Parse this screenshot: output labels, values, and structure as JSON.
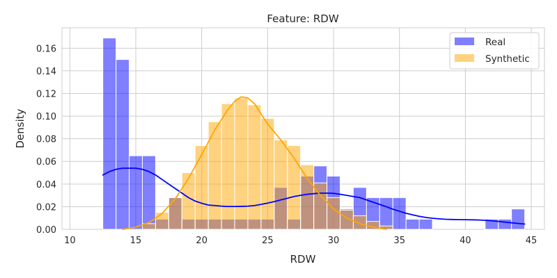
{
  "chart_data": {
    "type": "bar",
    "title": "Feature: RDW",
    "xlabel": "RDW",
    "ylabel": "Density",
    "xlim": [
      9.4,
      46
    ],
    "ylim": [
      0,
      0.178
    ],
    "xticks": [
      10,
      15,
      20,
      25,
      30,
      35,
      40,
      45
    ],
    "yticks": [
      0.0,
      0.02,
      0.04,
      0.06,
      0.08,
      0.1,
      0.12,
      0.14,
      0.16
    ],
    "ytick_labels": [
      "0.00",
      "0.02",
      "0.04",
      "0.06",
      "0.08",
      "0.10",
      "0.12",
      "0.14",
      "0.16"
    ],
    "grid": true,
    "legend_position": "top-right",
    "series": [
      {
        "name": "Real",
        "color": "#0000ff",
        "bin_width": 1,
        "bins": [
          {
            "x": 12.5,
            "y": 0.169
          },
          {
            "x": 13.5,
            "y": 0.15
          },
          {
            "x": 14.5,
            "y": 0.065
          },
          {
            "x": 15.5,
            "y": 0.065
          },
          {
            "x": 16.5,
            "y": 0.009
          },
          {
            "x": 17.5,
            "y": 0.028
          },
          {
            "x": 18.5,
            "y": 0.009
          },
          {
            "x": 19.5,
            "y": 0.009
          },
          {
            "x": 20.5,
            "y": 0.009
          },
          {
            "x": 21.5,
            "y": 0.009
          },
          {
            "x": 22.5,
            "y": 0.009
          },
          {
            "x": 23.5,
            "y": 0.009
          },
          {
            "x": 24.5,
            "y": 0.009
          },
          {
            "x": 25.5,
            "y": 0.037
          },
          {
            "x": 26.5,
            "y": 0.009
          },
          {
            "x": 27.5,
            "y": 0.047
          },
          {
            "x": 28.5,
            "y": 0.056
          },
          {
            "x": 29.5,
            "y": 0.047
          },
          {
            "x": 30.5,
            "y": 0.018
          },
          {
            "x": 31.5,
            "y": 0.037
          },
          {
            "x": 32.5,
            "y": 0.028
          },
          {
            "x": 33.5,
            "y": 0.028
          },
          {
            "x": 34.5,
            "y": 0.028
          },
          {
            "x": 35.5,
            "y": 0.009
          },
          {
            "x": 36.5,
            "y": 0.009
          },
          {
            "x": 41.5,
            "y": 0.009
          },
          {
            "x": 42.5,
            "y": 0.009
          },
          {
            "x": 43.5,
            "y": 0.018
          }
        ],
        "kde": [
          [
            12.5,
            0.048
          ],
          [
            13.0,
            0.051
          ],
          [
            13.5,
            0.053
          ],
          [
            14.0,
            0.054
          ],
          [
            14.5,
            0.054
          ],
          [
            15.0,
            0.054
          ],
          [
            15.5,
            0.053
          ],
          [
            16.0,
            0.051
          ],
          [
            16.5,
            0.048
          ],
          [
            17.0,
            0.044
          ],
          [
            17.5,
            0.04
          ],
          [
            18.0,
            0.036
          ],
          [
            18.5,
            0.032
          ],
          [
            19.0,
            0.028
          ],
          [
            19.5,
            0.025
          ],
          [
            20.0,
            0.023
          ],
          [
            20.5,
            0.0215
          ],
          [
            21.0,
            0.021
          ],
          [
            21.5,
            0.0205
          ],
          [
            22.0,
            0.0202
          ],
          [
            22.5,
            0.0202
          ],
          [
            23.0,
            0.0203
          ],
          [
            23.5,
            0.0205
          ],
          [
            24.0,
            0.021
          ],
          [
            24.5,
            0.022
          ],
          [
            25.0,
            0.0232
          ],
          [
            25.5,
            0.0245
          ],
          [
            26.0,
            0.026
          ],
          [
            26.5,
            0.0275
          ],
          [
            27.0,
            0.029
          ],
          [
            27.5,
            0.03
          ],
          [
            28.0,
            0.031
          ],
          [
            28.5,
            0.0315
          ],
          [
            29.0,
            0.032
          ],
          [
            29.5,
            0.032
          ],
          [
            30.0,
            0.0318
          ],
          [
            30.5,
            0.031
          ],
          [
            31.0,
            0.03
          ],
          [
            31.5,
            0.029
          ],
          [
            32.0,
            0.028
          ],
          [
            32.5,
            0.026
          ],
          [
            33.0,
            0.024
          ],
          [
            33.5,
            0.022
          ],
          [
            34.0,
            0.02
          ],
          [
            34.5,
            0.0178
          ],
          [
            35.0,
            0.016
          ],
          [
            35.5,
            0.0142
          ],
          [
            36.0,
            0.0128
          ],
          [
            36.5,
            0.0115
          ],
          [
            37.0,
            0.0105
          ],
          [
            37.5,
            0.0098
          ],
          [
            38.0,
            0.0093
          ],
          [
            38.5,
            0.0089
          ],
          [
            39.0,
            0.0087
          ],
          [
            39.5,
            0.0086
          ],
          [
            40.0,
            0.0085
          ],
          [
            40.5,
            0.0084
          ],
          [
            41.0,
            0.0083
          ],
          [
            41.5,
            0.008
          ],
          [
            42.0,
            0.0076
          ],
          [
            42.5,
            0.007
          ],
          [
            43.0,
            0.0064
          ],
          [
            43.5,
            0.0058
          ],
          [
            44.0,
            0.0052
          ],
          [
            44.5,
            0.0047
          ]
        ]
      },
      {
        "name": "Synthetic",
        "color": "#ffa500",
        "bin_width": 1,
        "bins": [
          {
            "x": 15.5,
            "y": 0.005
          },
          {
            "x": 16.5,
            "y": 0.015
          },
          {
            "x": 17.5,
            "y": 0.028
          },
          {
            "x": 18.5,
            "y": 0.05
          },
          {
            "x": 19.5,
            "y": 0.074
          },
          {
            "x": 20.5,
            "y": 0.095
          },
          {
            "x": 21.5,
            "y": 0.111
          },
          {
            "x": 22.5,
            "y": 0.116
          },
          {
            "x": 23.5,
            "y": 0.11
          },
          {
            "x": 24.5,
            "y": 0.098
          },
          {
            "x": 25.5,
            "y": 0.079
          },
          {
            "x": 26.5,
            "y": 0.074
          },
          {
            "x": 27.5,
            "y": 0.057
          },
          {
            "x": 28.5,
            "y": 0.041
          },
          {
            "x": 29.5,
            "y": 0.028
          },
          {
            "x": 30.5,
            "y": 0.017
          },
          {
            "x": 31.5,
            "y": 0.012
          },
          {
            "x": 32.5,
            "y": 0.007
          },
          {
            "x": 33.5,
            "y": 0.003
          }
        ],
        "kde": [
          [
            14.0,
            0.0
          ],
          [
            15.0,
            0.002
          ],
          [
            16.0,
            0.006
          ],
          [
            17.0,
            0.014
          ],
          [
            18.0,
            0.027
          ],
          [
            19.0,
            0.045
          ],
          [
            20.0,
            0.066
          ],
          [
            21.0,
            0.088
          ],
          [
            22.0,
            0.106
          ],
          [
            22.5,
            0.113
          ],
          [
            23.0,
            0.117
          ],
          [
            23.5,
            0.116
          ],
          [
            24.0,
            0.111
          ],
          [
            25.0,
            0.093
          ],
          [
            26.0,
            0.079
          ],
          [
            27.0,
            0.063
          ],
          [
            28.0,
            0.045
          ],
          [
            29.0,
            0.03
          ],
          [
            30.0,
            0.018
          ],
          [
            31.0,
            0.01
          ],
          [
            32.0,
            0.005
          ],
          [
            33.0,
            0.002
          ],
          [
            34.0,
            0.0
          ]
        ]
      }
    ]
  }
}
